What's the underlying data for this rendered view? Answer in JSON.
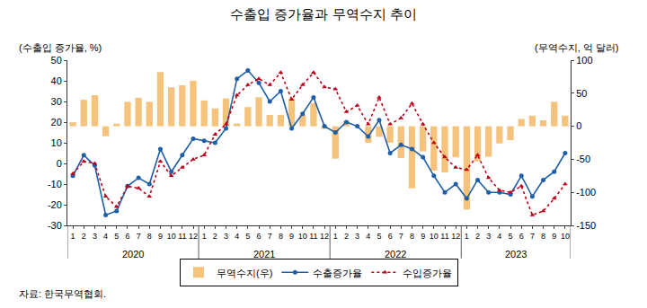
{
  "chart_data": {
    "type": "combo",
    "title": "수출입 증가율과 무역수지 추이",
    "y_label": "(수출입 증가율, %)",
    "y2_label": "(무역수지, 억 달러)",
    "source": "자료: 한국무역협회.",
    "categories": [
      "1",
      "2",
      "3",
      "4",
      "5",
      "6",
      "7",
      "8",
      "9",
      "10",
      "11",
      "12",
      "1",
      "2",
      "3",
      "4",
      "5",
      "6",
      "7",
      "8",
      "9",
      "10",
      "11",
      "12",
      "1",
      "2",
      "3",
      "4",
      "5",
      "6",
      "7",
      "8",
      "9",
      "10",
      "11",
      "12",
      "1",
      "2",
      "3",
      "4",
      "5",
      "6",
      "7",
      "8",
      "9",
      "10"
    ],
    "year_groups": [
      {
        "label": "2020",
        "count": 12
      },
      {
        "label": "2021",
        "count": 12
      },
      {
        "label": "2022",
        "count": 12
      },
      {
        "label": "2023",
        "count": 10
      }
    ],
    "series": [
      {
        "name": "무역수지(우)",
        "type": "bar",
        "axis": "y2",
        "color": "#f6c37c",
        "values": [
          6,
          40,
          47,
          -15,
          4,
          37,
          43,
          37,
          82,
          59,
          62,
          69,
          39,
          27,
          42,
          4,
          29,
          44,
          17,
          17,
          42,
          17,
          35,
          -4,
          -49,
          8,
          1,
          -25,
          -16,
          -25,
          -48,
          -94,
          -38,
          -67,
          -70,
          -47,
          -126,
          -53,
          -46,
          -26,
          -21,
          11,
          16,
          9,
          37,
          16
        ]
      },
      {
        "name": "수출증가율",
        "type": "line",
        "color": "#1f5ea8",
        "marker": "circle",
        "line_style": "solid",
        "values": [
          -6,
          4,
          -1,
          -25,
          -23,
          -11,
          -7,
          -10,
          7,
          -4,
          4,
          12,
          11,
          10,
          17,
          41,
          45,
          39,
          30,
          35,
          17,
          24,
          32,
          18,
          15,
          20,
          18,
          13,
          21,
          5,
          9,
          7,
          3,
          -6,
          -14,
          -10,
          -17,
          -8,
          -14,
          -14,
          -15,
          -6,
          -16,
          -8,
          -4,
          5
        ]
      },
      {
        "name": "수입증가율",
        "type": "line",
        "color": "#c00018",
        "marker": "triangle-up",
        "line_style": "dotted",
        "values": [
          -5,
          1,
          0,
          -16,
          -21,
          -11,
          -12,
          -16,
          1,
          -6,
          -2,
          2,
          4,
          14,
          19,
          33,
          38,
          41,
          38,
          44,
          31,
          38,
          44,
          37,
          36,
          25,
          28,
          19,
          32,
          19,
          22,
          29,
          19,
          10,
          3,
          -2,
          -3,
          4,
          -7,
          -13,
          -14,
          -11,
          -25,
          -23,
          -17,
          -10
        ]
      }
    ],
    "ylim": [
      -30,
      50
    ],
    "yticks": [
      -30,
      -20,
      -10,
      0,
      10,
      20,
      30,
      40,
      50
    ],
    "y2lim": [
      -150,
      100
    ],
    "y2ticks": [
      -150,
      -100,
      -50,
      0,
      50,
      100
    ],
    "grid": false,
    "legend": "bottom"
  }
}
